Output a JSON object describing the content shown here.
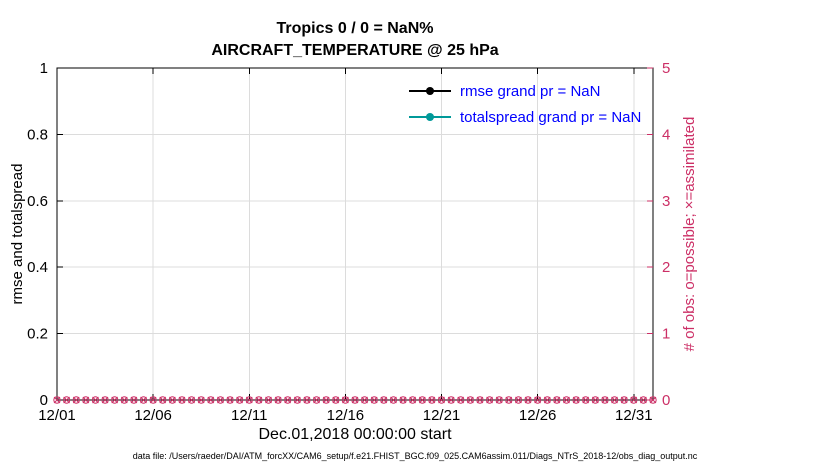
{
  "figure": {
    "title_line1": "Tropics 0 / 0 = NaN%",
    "title_line2": "AIRCRAFT_TEMPERATURE @ 25 hPa",
    "footer": "data file: /Users/raeder/DAI/ATM_forcXX/CAM6_setup/f.e21.FHIST_BGC.f09_025.CAM6assim.011/Diags_NTrS_2018-12/obs_diag_output.nc"
  },
  "chart_data": {
    "type": "line",
    "title": "Tropics 0 / 0 = NaN%",
    "subtitle": "AIRCRAFT_TEMPERATURE @ 25 hPa",
    "xlabel": "Dec.01,2018 00:00:00 start",
    "ylabel_left": "rmse and totalspread",
    "ylabel_right": "# of obs: o=possible; ×=assimilated",
    "x_tick_labels": [
      "12/01",
      "12/06",
      "12/11",
      "12/16",
      "12/21",
      "12/26",
      "12/31"
    ],
    "x_tick_days": [
      0,
      5,
      10,
      15,
      20,
      25,
      30
    ],
    "xlim_days": [
      0,
      31
    ],
    "ylim_left": [
      0,
      1
    ],
    "yticks_left": [
      "0",
      "0.2",
      "0.4",
      "0.6",
      "0.8",
      "1"
    ],
    "ylim_right": [
      0,
      5
    ],
    "yticks_right": [
      "0",
      "1",
      "2",
      "3",
      "4",
      "5"
    ],
    "grid": true,
    "legend_position": "upper-right-inside",
    "legend_entries": [
      {
        "label": "rmse grand pr = NaN",
        "line_color": "#000000",
        "marker": "filled-circle"
      },
      {
        "label": "totalspread grand pr = NaN",
        "line_color": "#009999",
        "marker": "filled-circle"
      }
    ],
    "series": [
      {
        "name": "rmse",
        "axis": "left",
        "color": "#000000",
        "values": "NaN (no data plotted)"
      },
      {
        "name": "totalspread",
        "axis": "left",
        "color": "#009999",
        "values": "NaN (no data plotted)"
      },
      {
        "name": "possible obs (o)",
        "axis": "right",
        "constant_value": 0
      },
      {
        "name": "assimilated obs (x)",
        "axis": "right",
        "constant_value": 0
      }
    ],
    "obs_markers": {
      "x_start_day": 0,
      "x_end_day": 31,
      "interval_days": 0.5,
      "value": 0,
      "markers": [
        "o",
        "x"
      ]
    },
    "colors": {
      "obs": "#cc2f66",
      "legend_text": "#0000ff",
      "teal": "#009999",
      "grid": "#dcdcdc",
      "axis": "#000000"
    }
  }
}
